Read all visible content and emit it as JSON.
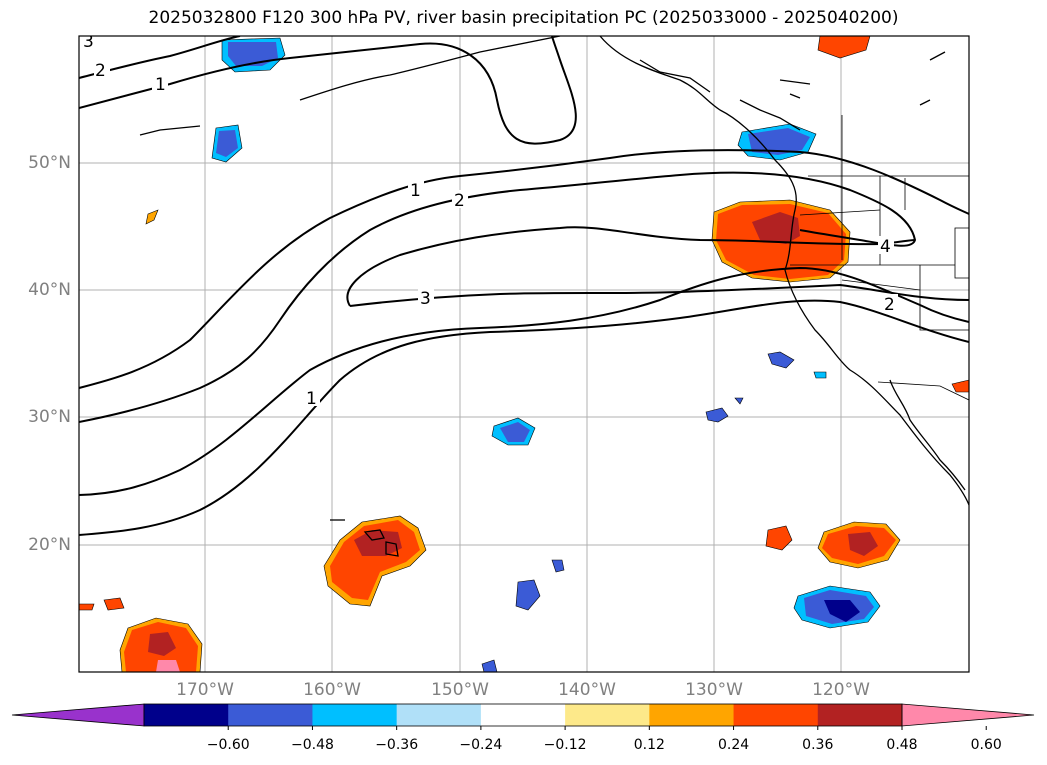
{
  "title": "2025032800 F120 300 hPa PV, river basin precipitation PC (2025033000 - 2025040200)",
  "lat_labels": [
    "50°N",
    "40°N",
    "30°N",
    "20°N"
  ],
  "lon_labels": [
    "170°W",
    "160°W",
    "150°W",
    "140°W",
    "130°W",
    "120°W"
  ],
  "contour_labels": [
    "2",
    "1",
    "1",
    "2",
    "3",
    "1",
    "4",
    "2",
    "3"
  ],
  "colorbar": {
    "ticks": [
      "−0.60",
      "−0.48",
      "−0.36",
      "−0.24",
      "−0.12",
      "0.12",
      "0.24",
      "0.36",
      "0.48",
      "0.60"
    ],
    "colors": [
      "#9932cc",
      "#00008b",
      "#3b5bd6",
      "#00bfff",
      "#b0e0f8",
      "#ffffff",
      "#fde98a",
      "#ffa500",
      "#ff4500",
      "#b22222",
      "#ff88aa"
    ]
  }
}
